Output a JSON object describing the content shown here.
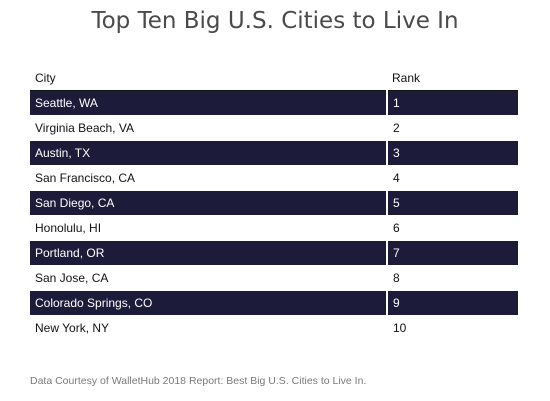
{
  "chart_data": {
    "type": "table",
    "title": "Top Ten Big U.S. Cities to Live In",
    "columns": [
      "City",
      "Rank"
    ],
    "rows": [
      [
        "Seattle, WA",
        "1"
      ],
      [
        "Virginia Beach, VA",
        "2"
      ],
      [
        "Austin, TX",
        "3"
      ],
      [
        "San Francisco, CA",
        "4"
      ],
      [
        "San Diego, CA",
        "5"
      ],
      [
        "Honolulu, HI",
        "6"
      ],
      [
        "Portland, OR",
        "7"
      ],
      [
        "San Jose, CA",
        "8"
      ],
      [
        "Colorado Springs, CO",
        "9"
      ],
      [
        "New York, NY",
        "10"
      ]
    ],
    "source": "Data Courtesy of WalletHub 2018 Report: Best Big U.S. Cities to Live In.",
    "colors": {
      "stripe": "#1c1b3a",
      "stripe_text": "#ffffff",
      "plain_text": "#111111"
    }
  }
}
